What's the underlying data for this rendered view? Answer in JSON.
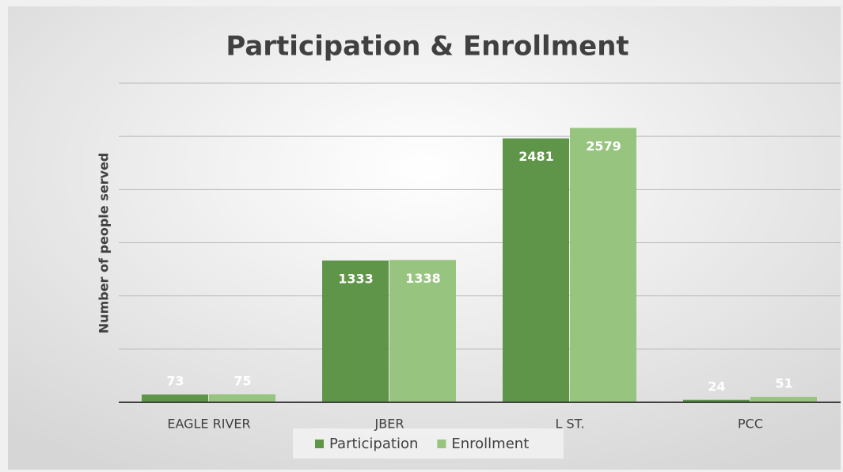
{
  "chart_data": {
    "type": "bar",
    "title": "Participation & Enrollment",
    "y_label": "Number of people served",
    "categories": [
      "EAGLE RIVER",
      "JBER",
      "L ST.",
      "PCC"
    ],
    "series": [
      {
        "name": "Participation",
        "color": "#5f9548",
        "values": [
          73,
          1333,
          2481,
          24
        ]
      },
      {
        "name": "Enrollment",
        "color": "#97c47f",
        "values": [
          75,
          1338,
          2579,
          51
        ]
      }
    ],
    "ylim": [
      0,
      3000
    ],
    "yticks": [
      0,
      500,
      1000,
      1500,
      2000,
      2500,
      3000
    ],
    "grid": true,
    "legend": "bottom"
  }
}
